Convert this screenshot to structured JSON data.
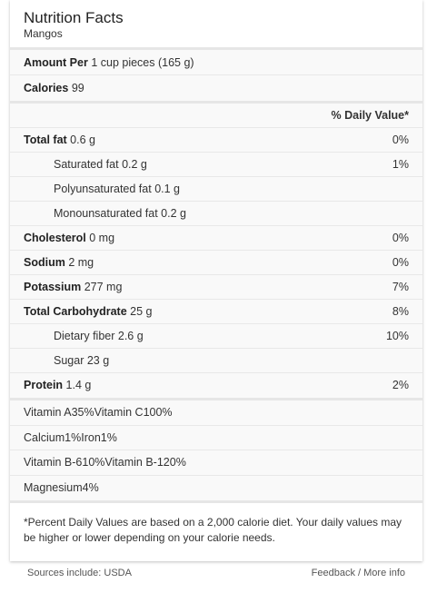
{
  "header": {
    "title": "Nutrition Facts",
    "subtitle": "Mangos"
  },
  "amount": {
    "label": "Amount Per",
    "value": "1 cup pieces (165 g)"
  },
  "calories": {
    "label": "Calories",
    "value": "99"
  },
  "dv_header": "% Daily Value*",
  "nutrients": [
    {
      "label": "Total fat",
      "amount": "0.6 g",
      "dv": "0%"
    },
    {
      "label": "Saturated fat",
      "amount": "0.2 g",
      "dv": "1%"
    },
    {
      "label": "Polyunsaturated fat",
      "amount": "0.1 g",
      "dv": ""
    },
    {
      "label": "Monounsaturated fat",
      "amount": "0.2 g",
      "dv": ""
    },
    {
      "label": "Cholesterol",
      "amount": "0 mg",
      "dv": "0%"
    },
    {
      "label": "Sodium",
      "amount": "2 mg",
      "dv": "0%"
    },
    {
      "label": "Potassium",
      "amount": "277 mg",
      "dv": "7%"
    },
    {
      "label": "Total Carbohydrate",
      "amount": "25 g",
      "dv": "8%"
    },
    {
      "label": "Dietary fiber",
      "amount": "2.6 g",
      "dv": "10%"
    },
    {
      "label": "Sugar",
      "amount": "23 g",
      "dv": ""
    },
    {
      "label": "Protein",
      "amount": "1.4 g",
      "dv": "2%"
    }
  ],
  "vitamins": [
    {
      "left": {
        "label": "Vitamin A",
        "dv": "35%"
      },
      "right": {
        "label": "Vitamin C",
        "dv": "100%"
      }
    },
    {
      "left": {
        "label": "Calcium",
        "dv": "1%"
      },
      "right": {
        "label": "Iron",
        "dv": "1%"
      }
    },
    {
      "left": {
        "label": "Vitamin B-6",
        "dv": "10%"
      },
      "right": {
        "label": "Vitamin B-12",
        "dv": "0%"
      }
    },
    {
      "left": {
        "label": "Magnesium",
        "dv": "4%"
      },
      "right": {
        "label": "",
        "dv": ""
      }
    }
  ],
  "footnote": "*Percent Daily Values are based on a 2,000 calorie diet. Your daily values may be higher or lower depending on your calorie needs.",
  "sources": "Sources include: USDA",
  "links": {
    "feedback": "Feedback",
    "separator": " / ",
    "more_info": "More info"
  }
}
